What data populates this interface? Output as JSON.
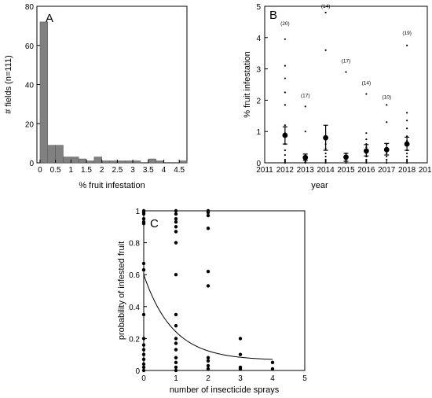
{
  "chart_data": [
    {
      "type": "bar",
      "panel_label": "A",
      "xlabel": "% fruit infestation",
      "ylabel": "# fields (n=111)",
      "xlim": [
        -0.1,
        4.75
      ],
      "ylim": [
        0,
        80
      ],
      "x_ticks": [
        "0",
        "0.5",
        "1",
        "1.5",
        "2",
        "2.5",
        "3",
        "3.5",
        "4",
        "4.5"
      ],
      "x_tick_values": [
        0,
        0.5,
        1,
        1.5,
        2,
        2.5,
        3,
        3.5,
        4,
        4.5
      ],
      "y_ticks": [
        "0",
        "20",
        "40",
        "60",
        "80"
      ],
      "y_tick_values": [
        0,
        20,
        40,
        60,
        80
      ],
      "bin_width": 0.25,
      "bins": [
        {
          "start": 0.0,
          "count": 72
        },
        {
          "start": 0.25,
          "count": 9
        },
        {
          "start": 0.5,
          "count": 9
        },
        {
          "start": 0.75,
          "count": 3
        },
        {
          "start": 1.0,
          "count": 3
        },
        {
          "start": 1.25,
          "count": 2
        },
        {
          "start": 1.5,
          "count": 1
        },
        {
          "start": 1.75,
          "count": 3
        },
        {
          "start": 2.0,
          "count": 1
        },
        {
          "start": 2.25,
          "count": 1
        },
        {
          "start": 2.5,
          "count": 1
        },
        {
          "start": 2.75,
          "count": 1
        },
        {
          "start": 3.0,
          "count": 1
        },
        {
          "start": 3.5,
          "count": 2
        },
        {
          "start": 3.75,
          "count": 1
        },
        {
          "start": 4.5,
          "count": 1
        }
      ],
      "bar_color": "#808080"
    },
    {
      "type": "scatter",
      "panel_label": "B",
      "xlabel": "year",
      "ylabel": "% fruit infestation",
      "xlim": [
        2011,
        2019
      ],
      "ylim": [
        0,
        5
      ],
      "x_ticks": [
        "2011",
        "2012",
        "2013",
        "2014",
        "2015",
        "2016",
        "2017",
        "2018",
        "2019"
      ],
      "x_tick_values": [
        2011,
        2012,
        2013,
        2014,
        2015,
        2016,
        2017,
        2018,
        2019
      ],
      "y_ticks": [
        "0",
        "1",
        "2",
        "3",
        "4",
        "5"
      ],
      "y_tick_values": [
        0,
        1,
        2,
        3,
        4,
        5
      ],
      "years": [
        {
          "year": 2012,
          "n_label": "(20)",
          "mean": 0.88,
          "err_low": 0.6,
          "err_high": 1.15,
          "label_y": 4.4,
          "points": [
            3.95,
            3.1,
            2.7,
            2.25,
            1.85,
            1.2,
            0.95,
            0.6,
            0.4,
            0.25,
            0.1,
            0.05,
            0
          ]
        },
        {
          "year": 2013,
          "n_label": "(17)",
          "mean": 0.17,
          "err_low": 0.08,
          "err_high": 0.28,
          "label_y": 2.1,
          "points": [
            1.8,
            1.0,
            0.25,
            0.2,
            0.15,
            0.1,
            0.05,
            0.02,
            0
          ]
        },
        {
          "year": 2014,
          "n_label": "(14)",
          "mean": 0.8,
          "err_low": 0.4,
          "err_high": 1.2,
          "label_y": 4.95,
          "points": [
            4.8,
            3.6,
            0.6,
            0.45,
            0.3,
            0.2,
            0.1,
            0.05,
            0
          ]
        },
        {
          "year": 2015,
          "n_label": "(17)",
          "mean": 0.18,
          "err_low": 0.05,
          "err_high": 0.3,
          "label_y": 3.2,
          "points": [
            2.9,
            0.3,
            0.2,
            0.1,
            0.05,
            0
          ]
        },
        {
          "year": 2016,
          "n_label": "(14)",
          "mean": 0.38,
          "err_low": 0.22,
          "err_high": 0.58,
          "label_y": 2.5,
          "points": [
            2.2,
            0.95,
            0.75,
            0.6,
            0.5,
            0.4,
            0.3,
            0.2,
            0.1,
            0.05,
            0
          ]
        },
        {
          "year": 2017,
          "n_label": "(10)",
          "mean": 0.42,
          "err_low": 0.25,
          "err_high": 0.62,
          "label_y": 2.05,
          "points": [
            1.85,
            1.3,
            0.6,
            0.45,
            0.3,
            0.2,
            0.1,
            0
          ]
        },
        {
          "year": 2018,
          "n_label": "(19)",
          "mean": 0.6,
          "err_low": 0.4,
          "err_high": 0.82,
          "label_y": 4.1,
          "points": [
            3.75,
            1.6,
            1.35,
            1.1,
            0.85,
            0.7,
            0.55,
            0.4,
            0.3,
            0.2,
            0.1,
            0.05,
            0
          ]
        }
      ]
    },
    {
      "type": "scatter",
      "panel_label": "C",
      "xlabel": "number of insecticide sprays",
      "ylabel": "probability of infested fruit",
      "xlim": [
        0,
        5
      ],
      "ylim": [
        0,
        1
      ],
      "x_ticks": [
        "0",
        "1",
        "2",
        "3",
        "4",
        "5"
      ],
      "x_tick_values": [
        0,
        1,
        2,
        3,
        4,
        5
      ],
      "y_ticks": [
        "0",
        "0.2",
        "0.4",
        "0.6",
        "0.8",
        "1"
      ],
      "y_tick_values": [
        0,
        0.2,
        0.4,
        0.6,
        0.8,
        1
      ],
      "points": [
        {
          "x": 0,
          "y": 1.0
        },
        {
          "x": 0,
          "y": 0.99
        },
        {
          "x": 0,
          "y": 0.98
        },
        {
          "x": 0,
          "y": 0.95
        },
        {
          "x": 0,
          "y": 0.93
        },
        {
          "x": 0,
          "y": 0.92
        },
        {
          "x": 0,
          "y": 0.67
        },
        {
          "x": 0,
          "y": 0.63
        },
        {
          "x": 0,
          "y": 0.35
        },
        {
          "x": 0,
          "y": 0.2
        },
        {
          "x": 0,
          "y": 0.16
        },
        {
          "x": 0,
          "y": 0.13
        },
        {
          "x": 0,
          "y": 0.1
        },
        {
          "x": 0,
          "y": 0.07
        },
        {
          "x": 0,
          "y": 0.04
        },
        {
          "x": 0,
          "y": 0.02
        },
        {
          "x": 0,
          "y": 0.0
        },
        {
          "x": 1,
          "y": 1.0
        },
        {
          "x": 1,
          "y": 0.98
        },
        {
          "x": 1,
          "y": 0.95
        },
        {
          "x": 1,
          "y": 0.93
        },
        {
          "x": 1,
          "y": 0.9
        },
        {
          "x": 1,
          "y": 0.87
        },
        {
          "x": 1,
          "y": 0.8
        },
        {
          "x": 1,
          "y": 0.6
        },
        {
          "x": 1,
          "y": 0.35
        },
        {
          "x": 1,
          "y": 0.28
        },
        {
          "x": 1,
          "y": 0.2
        },
        {
          "x": 1,
          "y": 0.17
        },
        {
          "x": 1,
          "y": 0.13
        },
        {
          "x": 1,
          "y": 0.08
        },
        {
          "x": 1,
          "y": 0.05
        },
        {
          "x": 1,
          "y": 0.02
        },
        {
          "x": 1,
          "y": 0.0
        },
        {
          "x": 2,
          "y": 1.0
        },
        {
          "x": 2,
          "y": 0.99
        },
        {
          "x": 2,
          "y": 0.97
        },
        {
          "x": 2,
          "y": 0.89
        },
        {
          "x": 2,
          "y": 0.62
        },
        {
          "x": 2,
          "y": 0.53
        },
        {
          "x": 2,
          "y": 0.08
        },
        {
          "x": 2,
          "y": 0.06
        },
        {
          "x": 2,
          "y": 0.03
        },
        {
          "x": 2,
          "y": 0.01
        },
        {
          "x": 3,
          "y": 0.2
        },
        {
          "x": 3,
          "y": 0.1
        },
        {
          "x": 3,
          "y": 0.02
        },
        {
          "x": 3,
          "y": 0.01
        },
        {
          "x": 4,
          "y": 0.05
        },
        {
          "x": 4,
          "y": 0.01
        }
      ],
      "fit_curve": {
        "model": "y = 0.063 + 0.537 * exp(-1.1 * x)",
        "a": 0.063,
        "b": 0.537,
        "k": 1.1,
        "x_range": [
          0,
          4
        ]
      }
    }
  ]
}
